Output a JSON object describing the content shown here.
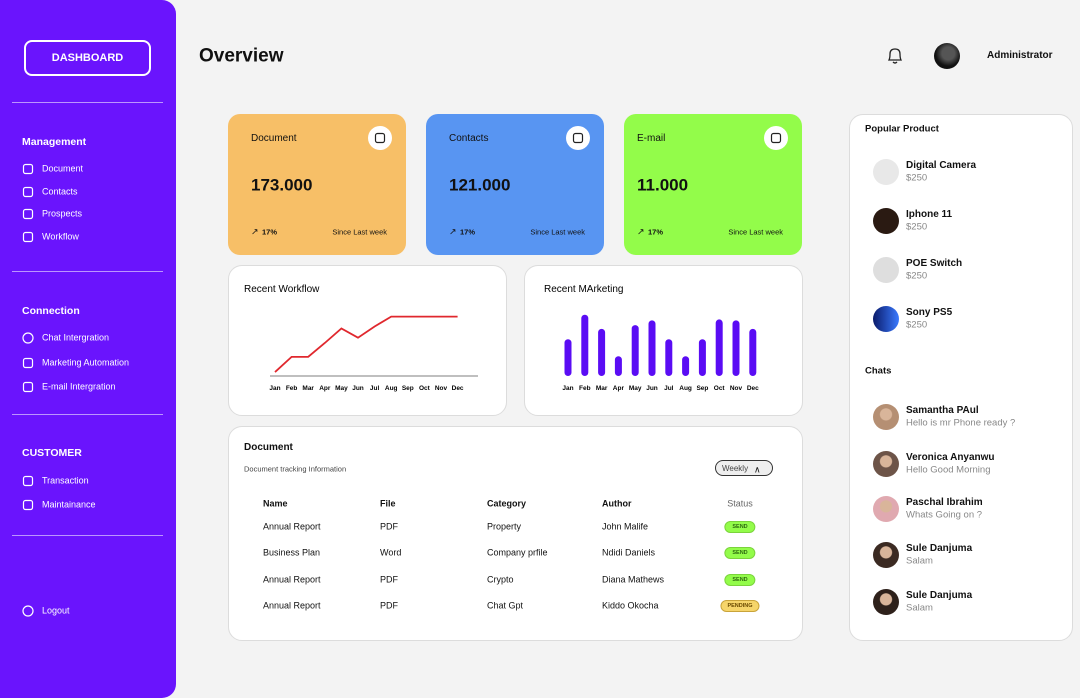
{
  "header": {
    "title": "Overview",
    "user": "Administrator"
  },
  "sidebar": {
    "button": "DASHBOARD",
    "sections": [
      {
        "title": "Management",
        "items": [
          "Document",
          "Contacts",
          "Prospects",
          "Workflow"
        ]
      },
      {
        "title": "Connection",
        "items": [
          "Chat Intergration",
          "Marketing Automation",
          "E-mail Intergration"
        ]
      },
      {
        "title": "CUSTOMER",
        "items": [
          "Transaction",
          "Maintainance"
        ]
      }
    ],
    "logout": "Logout"
  },
  "cards": [
    {
      "title": "Document",
      "value": "173.000",
      "change": "17%",
      "period": "Since Last week",
      "color": "#f7bf67"
    },
    {
      "title": "Contacts",
      "value": "121.000",
      "change": "17%",
      "period": "Since Last week",
      "color": "#5895f2"
    },
    {
      "title": "E-mail",
      "value": "11.000",
      "change": "17%",
      "period": "Since Last week",
      "color": "#93fc4a"
    }
  ],
  "chart_data": [
    {
      "type": "line",
      "title": "Recent Workflow",
      "color": "#e0282e",
      "categories": [
        "Jan",
        "Feb",
        "Mar",
        "Apr",
        "May",
        "Jun",
        "Jul",
        "Aug",
        "Sep",
        "Oct",
        "Nov",
        "Dec"
      ],
      "values": [
        6,
        29,
        29,
        50,
        72,
        58,
        75,
        90,
        90,
        90,
        90,
        90
      ],
      "ylim": [
        0,
        100
      ]
    },
    {
      "type": "bar",
      "title": "Recent MArketing",
      "color": "#5a0cf4",
      "categories": [
        "Jan",
        "Feb",
        "Mar",
        "Apr",
        "May",
        "Jun",
        "Jul",
        "Aug",
        "Sep",
        "Oct",
        "Nov",
        "Dec"
      ],
      "values": [
        39,
        65,
        50,
        21,
        54,
        59,
        39,
        21,
        39,
        60,
        59,
        50
      ],
      "ylim": [
        0,
        70
      ]
    }
  ],
  "table": {
    "title": "Document",
    "subtitle": "Document tracking Information",
    "filter": "Weekly",
    "columns": [
      "Name",
      "File",
      "Category",
      "Author",
      "Status"
    ],
    "rows": [
      [
        "Annual Report",
        "PDF",
        "Property",
        "John Malife",
        "SEND"
      ],
      [
        "Business Plan",
        "Word",
        "Company prfile",
        "Ndidi Daniels",
        "SEND"
      ],
      [
        "Annual Report",
        "PDF",
        "Crypto",
        "Diana Mathews",
        "SEND"
      ],
      [
        "Annual Report",
        "PDF",
        "Chat Gpt",
        "Kiddo Okocha",
        "PENDING"
      ]
    ]
  },
  "popular": {
    "title": "Popular Product",
    "items": [
      {
        "name": "Digital Camera",
        "price": "$250"
      },
      {
        "name": "Iphone 11",
        "price": "$250"
      },
      {
        "name": "POE Switch",
        "price": "$250"
      },
      {
        "name": "Sony PS5",
        "price": "$250"
      }
    ]
  },
  "chats": {
    "title": "Chats",
    "items": [
      {
        "name": "Samantha PAul",
        "message": "Hello is mr Phone ready ?"
      },
      {
        "name": "Veronica Anyanwu",
        "message": "Hello Good Morning"
      },
      {
        "name": "Paschal Ibrahim",
        "message": "Whats Going on ?"
      },
      {
        "name": "Sule Danjuma",
        "message": "Salam"
      },
      {
        "name": "Sule Danjuma",
        "message": "Salam"
      }
    ]
  }
}
